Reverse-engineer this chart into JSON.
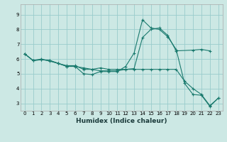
{
  "xlabel": "Humidex (Indice chaleur)",
  "bg_color": "#cce8e4",
  "grid_color": "#99cccc",
  "line_color": "#1a7a6e",
  "xlim": [
    -0.5,
    23.5
  ],
  "ylim": [
    2.5,
    9.7
  ],
  "yticks": [
    3,
    4,
    5,
    6,
    7,
    8,
    9
  ],
  "xticks": [
    0,
    1,
    2,
    3,
    4,
    5,
    6,
    7,
    8,
    9,
    10,
    11,
    12,
    13,
    14,
    15,
    16,
    17,
    18,
    19,
    20,
    21,
    22,
    23
  ],
  "line1_x": [
    0,
    1,
    2,
    3,
    4,
    5,
    6,
    7,
    8,
    9,
    10,
    11,
    12,
    13,
    14,
    15,
    16,
    17,
    18,
    19,
    20,
    21,
    22,
    23
  ],
  "line1_y": [
    6.35,
    5.9,
    5.95,
    5.9,
    5.7,
    5.55,
    5.55,
    5.3,
    5.3,
    5.2,
    5.2,
    5.2,
    5.3,
    5.3,
    5.3,
    5.3,
    5.3,
    5.3,
    5.3,
    4.5,
    4.0,
    3.6,
    2.85,
    3.35
  ],
  "line2_x": [
    0,
    1,
    2,
    3,
    4,
    5,
    6,
    7,
    8,
    9,
    10,
    11,
    12,
    13,
    14,
    15,
    16,
    17,
    18,
    20,
    21,
    22
  ],
  "line2_y": [
    6.35,
    5.9,
    6.0,
    5.85,
    5.7,
    5.5,
    5.5,
    5.4,
    5.3,
    5.4,
    5.3,
    5.3,
    5.3,
    5.35,
    7.45,
    8.0,
    8.1,
    7.6,
    6.55,
    6.6,
    6.65,
    6.55
  ],
  "line3_x": [
    0,
    1,
    2,
    3,
    4,
    5,
    6,
    7,
    8,
    9,
    10,
    11,
    12,
    13,
    14,
    15,
    16,
    17,
    18,
    19,
    20,
    21,
    22,
    23
  ],
  "line3_y": [
    6.35,
    5.9,
    5.95,
    5.9,
    5.7,
    5.5,
    5.5,
    5.0,
    4.95,
    5.15,
    5.15,
    5.15,
    5.5,
    6.4,
    8.65,
    8.1,
    8.0,
    7.5,
    6.65,
    4.35,
    3.6,
    3.55,
    2.8,
    3.35
  ],
  "tick_fontsize": 5,
  "xlabel_fontsize": 6.5
}
